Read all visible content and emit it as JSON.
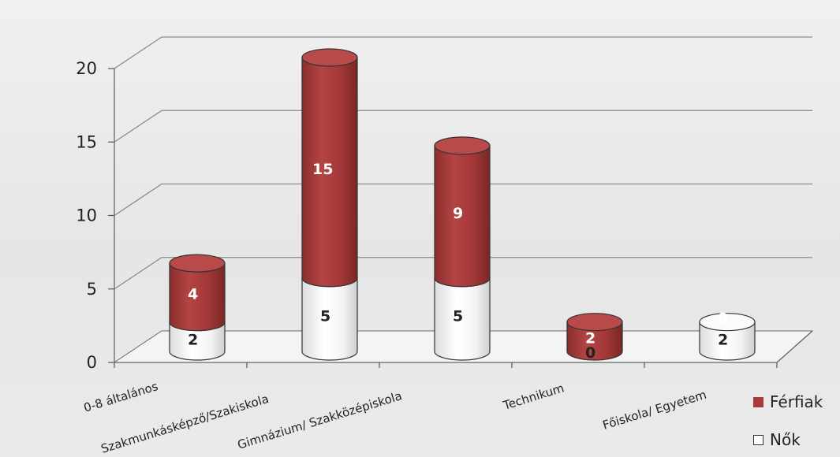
{
  "chart_data": {
    "type": "bar",
    "stacked": true,
    "three_d": true,
    "title": "",
    "xlabel": "",
    "ylabel": "",
    "categories": [
      "0-8 általános",
      "Szakmunkásképző/Szakiskola",
      "Gimnázium/ Szakközépiskola",
      "Technikum",
      "Főiskola/ Egyetem"
    ],
    "series": [
      {
        "name": "Nők",
        "values": [
          2,
          5,
          5,
          0,
          2
        ],
        "color": "#f2f2f2"
      },
      {
        "name": "Férfiak",
        "values": [
          4,
          15,
          9,
          2,
          0
        ],
        "color": "#a83a3a"
      }
    ],
    "ylim": [
      0,
      20
    ],
    "yticks": [
      0,
      5,
      10,
      15,
      20
    ],
    "grid": true,
    "legend": "bottom-right"
  }
}
